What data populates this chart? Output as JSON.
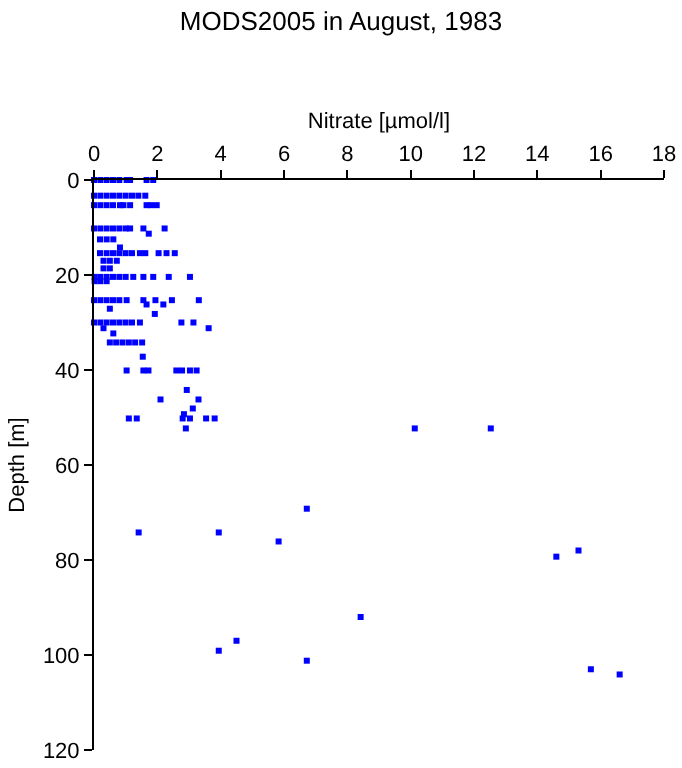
{
  "chart_data": {
    "type": "scatter",
    "title": "MODS2005 in August, 1983",
    "xlabel": "Nitrate [µmol/l]",
    "ylabel": "Depth [m]",
    "xlim": [
      0,
      18
    ],
    "xticks": [
      0,
      2,
      4,
      6,
      8,
      10,
      12,
      14,
      16,
      18
    ],
    "ylim": [
      120,
      0
    ],
    "yticks": [
      0,
      20,
      40,
      60,
      80,
      100,
      120
    ],
    "grid": false,
    "marker": "square",
    "color": "#0000ff",
    "x": [
      0,
      0.2,
      0.4,
      0.6,
      0.8,
      1.03,
      1.14,
      1.66,
      1.87,
      0,
      0.2,
      0.4,
      0.6,
      0.8,
      1.0,
      1.2,
      1.4,
      1.62,
      0,
      0.2,
      0.4,
      0.6,
      0.82,
      0.93,
      1.14,
      1.66,
      1.8,
      1.98,
      0,
      0.2,
      0.4,
      0.6,
      0.8,
      1.0,
      1.14,
      1.56,
      2.23,
      1.73,
      0.19,
      0.4,
      0.61,
      0.82,
      0.19,
      0.4,
      0.6,
      0.8,
      1.0,
      1.2,
      1.45,
      1.62,
      2.04,
      2.29,
      2.55,
      0.3,
      0.5,
      0.72,
      0.3,
      0.5,
      0.02,
      0.2,
      0.4,
      0.6,
      0.8,
      1.0,
      1.24,
      1.56,
      1.87,
      2.36,
      3.03,
      0.02,
      0.2,
      0.4,
      0,
      0.2,
      0.4,
      0.6,
      0.8,
      1.03,
      1.56,
      1.94,
      2.46,
      3.31,
      1.66,
      2.19,
      0.5,
      1.92,
      0,
      0.2,
      0.4,
      0.6,
      0.8,
      1.0,
      1.2,
      1.45,
      2.76,
      3.14,
      0.3,
      3.62,
      0.61,
      0.5,
      0.7,
      0.9,
      1.1,
      1.3,
      1.52,
      1.54,
      1.03,
      1.56,
      1.72,
      2.6,
      2.78,
      3.03,
      3.24,
      2.93,
      2.1,
      3.3,
      3.12,
      2.84,
      1.1,
      1.35,
      2.8,
      3.03,
      3.54,
      3.81,
      2.9,
      10.13,
      12.53,
      6.72,
      1.41,
      3.94,
      5.83,
      14.6,
      15.3,
      8.42,
      3.94,
      4.5,
      6.72,
      15.69,
      16.6
    ],
    "values": [
      0,
      0,
      0,
      0,
      0,
      0,
      0,
      0,
      0,
      3.3,
      3.3,
      3.3,
      3.3,
      3.3,
      3.3,
      3.3,
      3.3,
      3.3,
      5.3,
      5.3,
      5.3,
      5.3,
      5.3,
      5.3,
      5.3,
      5.3,
      5.3,
      5.3,
      10.2,
      10.2,
      10.2,
      10.2,
      10.2,
      10.2,
      10.2,
      10.2,
      10.2,
      11.3,
      12.5,
      12.5,
      12.5,
      14.2,
      15.4,
      15.4,
      15.4,
      15.4,
      15.4,
      15.4,
      15.4,
      15.4,
      15.4,
      15.4,
      15.4,
      17,
      17,
      17,
      18.6,
      18.6,
      20.4,
      20.4,
      20.4,
      20.4,
      20.4,
      20.4,
      20.4,
      20.4,
      20.4,
      20.4,
      20.4,
      21.3,
      21.3,
      21.3,
      25.3,
      25.3,
      25.3,
      25.3,
      25.3,
      25.3,
      25.3,
      25.3,
      25.3,
      25.3,
      26.2,
      26.2,
      27.1,
      28.2,
      30,
      30,
      30,
      30,
      30,
      30,
      30,
      30,
      30,
      30,
      31.2,
      31.2,
      32.3,
      34.2,
      34.2,
      34.2,
      34.2,
      34.2,
      34.2,
      37.2,
      40.1,
      40.1,
      40.1,
      40.1,
      40.1,
      40.1,
      40.1,
      44.2,
      46.2,
      46.2,
      48.1,
      49.3,
      50.2,
      50.2,
      50.2,
      50.2,
      50.2,
      50.2,
      52.3,
      52.3,
      52.3,
      69.2,
      74.2,
      74.2,
      76.1,
      79.3,
      78,
      92,
      99.1,
      97,
      101.2,
      103,
      104.1
    ]
  }
}
